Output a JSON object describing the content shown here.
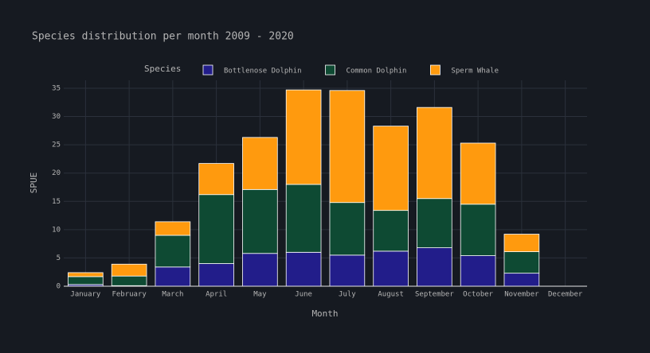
{
  "chart_data": {
    "type": "bar",
    "stacked": true,
    "title": "Species distribution per month 2009 - 2020",
    "x_label": "Month",
    "y_label": "SPUE",
    "legend_title": "Species",
    "categories": [
      "January",
      "February",
      "March",
      "April",
      "May",
      "June",
      "July",
      "August",
      "September",
      "October",
      "November",
      "December"
    ],
    "series": [
      {
        "name": "Bottlenose Dolphin",
        "color": "#221d8a",
        "values": [
          0.3,
          0.1,
          3.4,
          4.0,
          5.8,
          6.0,
          5.5,
          6.2,
          6.8,
          5.4,
          2.3,
          0
        ]
      },
      {
        "name": "Common Dolphin",
        "color": "#0e4a33",
        "values": [
          1.4,
          1.7,
          5.6,
          12.2,
          11.3,
          12.0,
          9.3,
          7.2,
          8.7,
          9.1,
          3.8,
          0
        ]
      },
      {
        "name": "Sperm Whale",
        "color": "#ff9a0e",
        "values": [
          0.7,
          2.1,
          2.4,
          5.5,
          9.2,
          16.7,
          19.8,
          14.9,
          16.1,
          10.8,
          3.1,
          0
        ]
      }
    ],
    "ylim": [
      0,
      36.4
    ],
    "yticks": [
      0,
      5,
      10,
      15,
      20,
      25,
      30,
      35
    ],
    "grid": true
  }
}
